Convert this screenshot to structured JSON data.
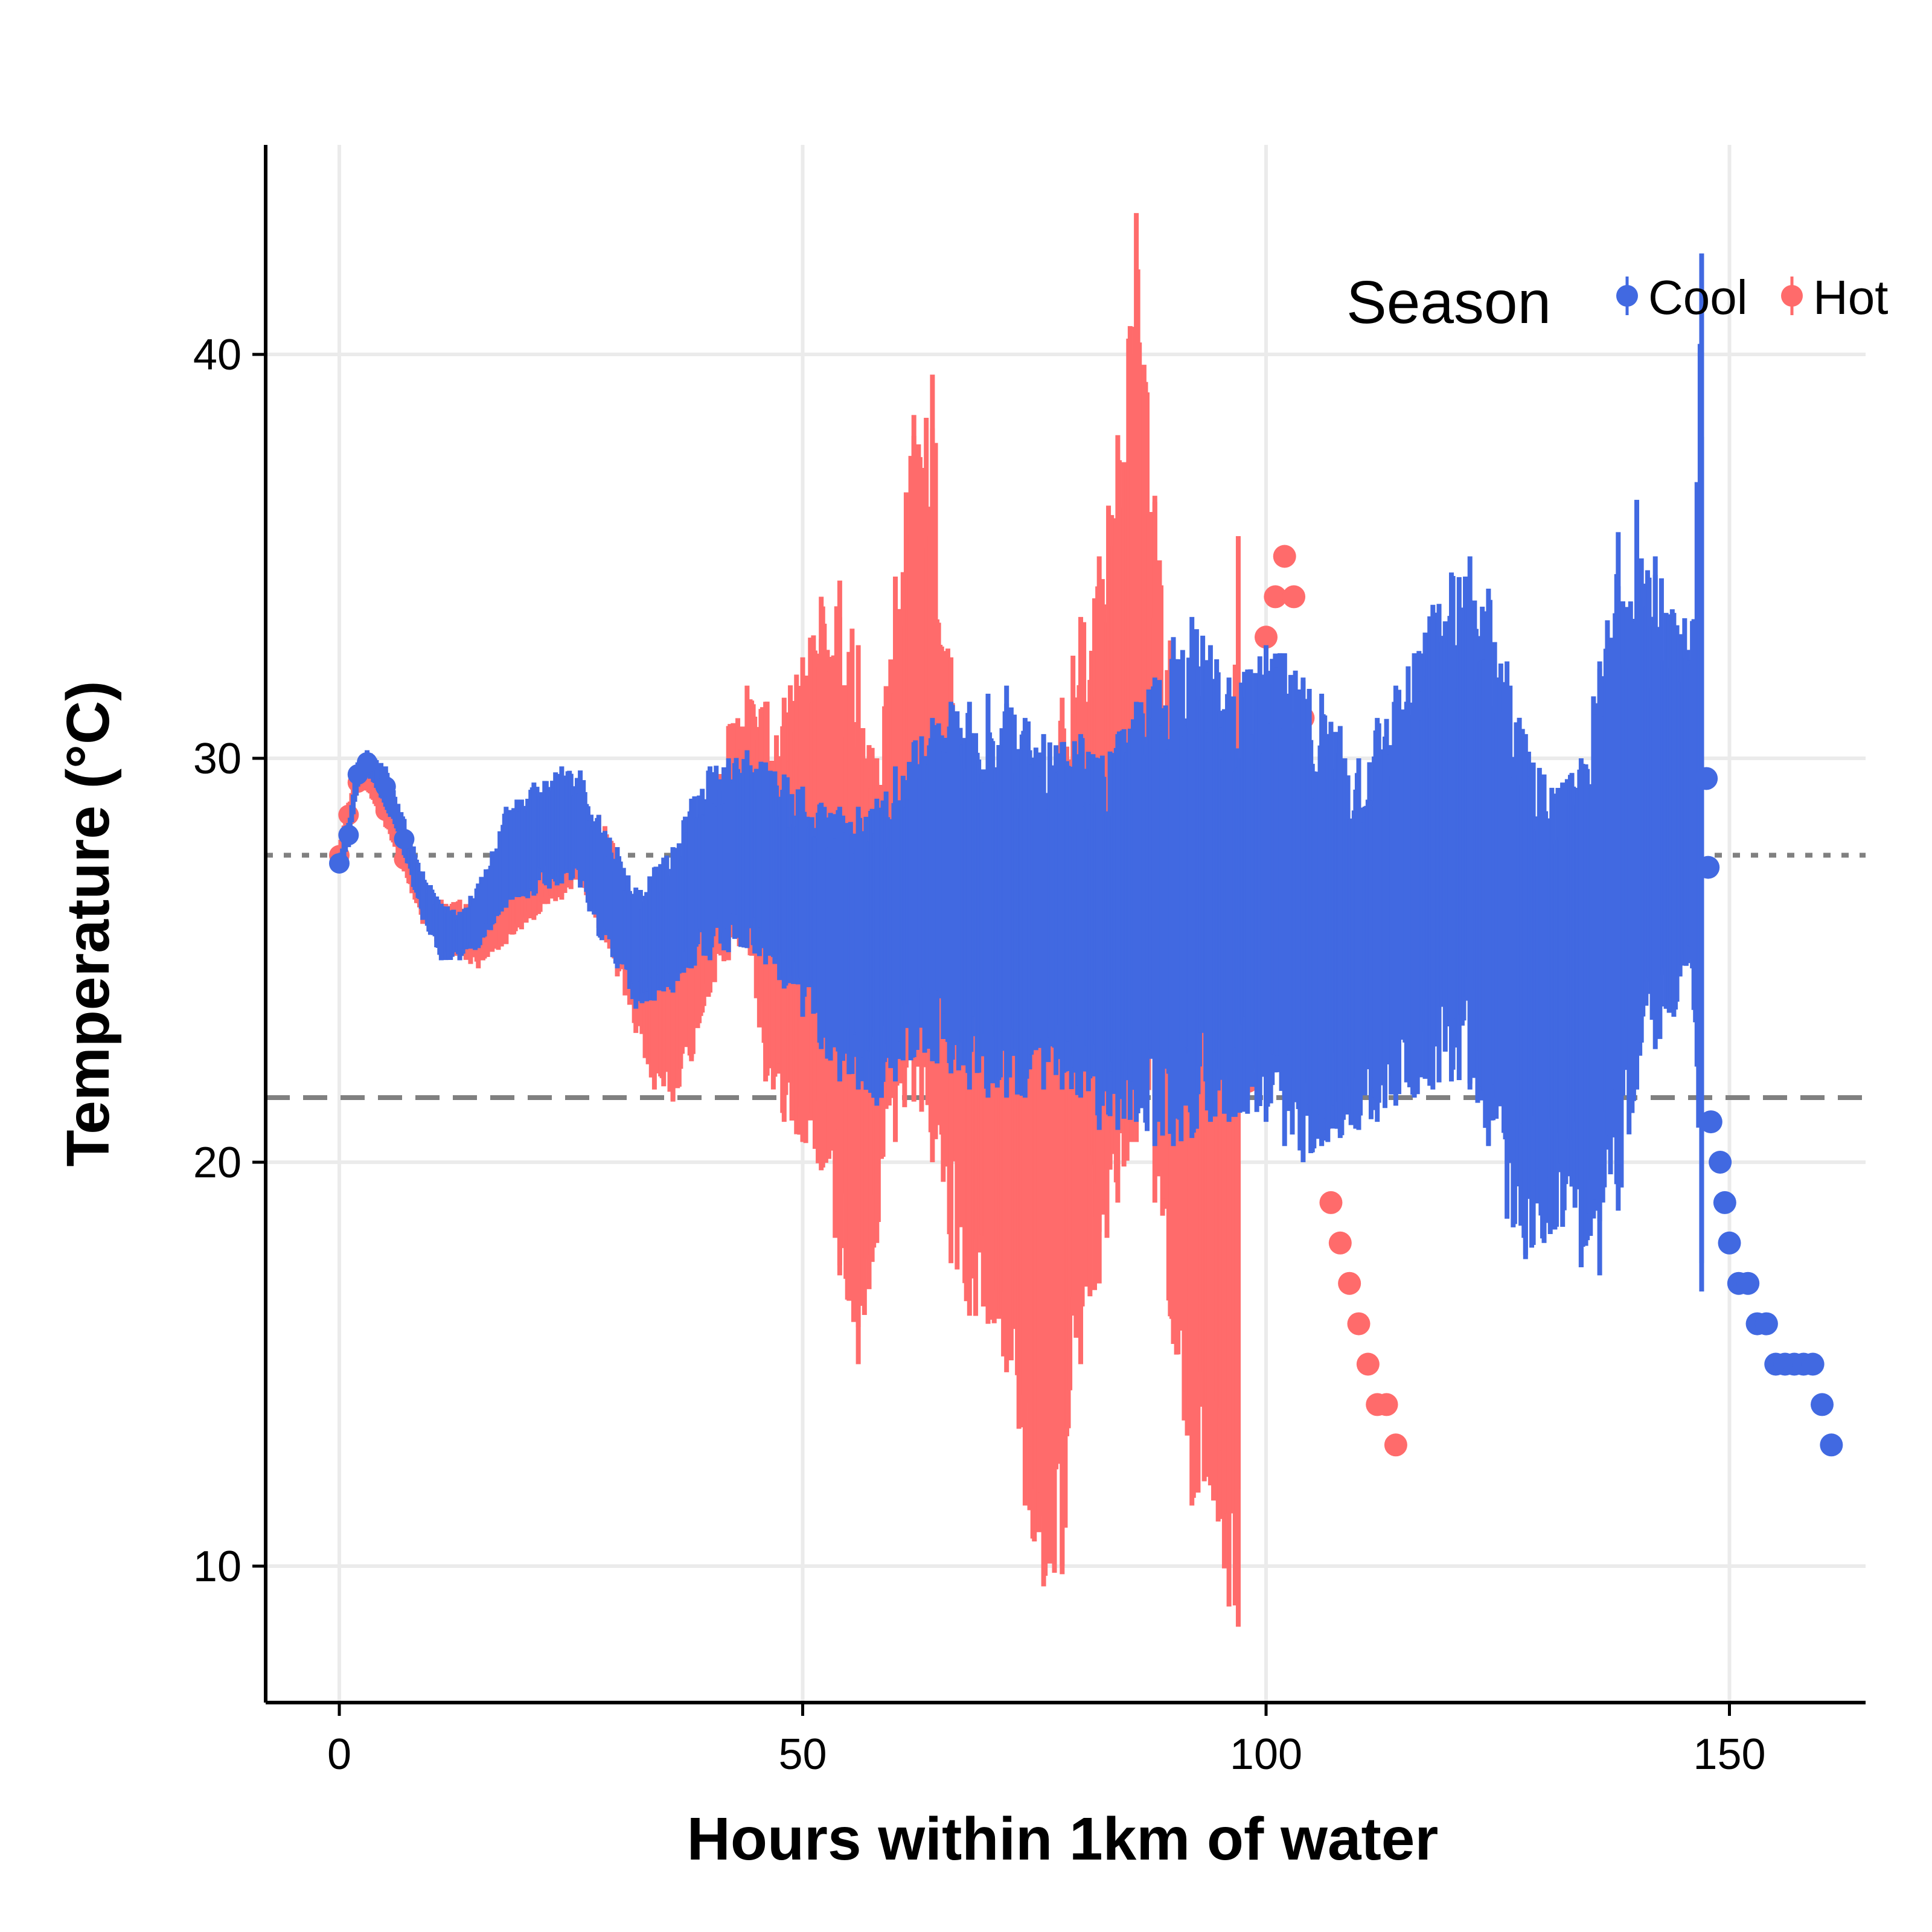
{
  "chart_data": {
    "type": "scatter",
    "xlabel": "Hours within 1km of water",
    "ylabel": "Temperature (°C)",
    "xlim": [
      -8,
      165
    ],
    "ylim": [
      6.5,
      45
    ],
    "x_ticks": [
      0,
      50,
      100,
      150
    ],
    "x_tick_labels": [
      "0",
      "50",
      "100",
      "150"
    ],
    "y_ticks": [
      10,
      20,
      30,
      40
    ],
    "y_tick_labels": [
      "10",
      "20",
      "30",
      "40"
    ],
    "grid": true,
    "reference_lines": [
      {
        "y": 27.6,
        "style": "dotted",
        "color": "#808080"
      },
      {
        "y": 21.6,
        "style": "dashed",
        "color": "#808080"
      }
    ],
    "legend": {
      "title": "Season",
      "position": "top-right",
      "entries": [
        {
          "label": "Cool",
          "color": "#4169E1"
        },
        {
          "label": "Hot",
          "color": "#FF6B6B"
        }
      ]
    },
    "series": [
      {
        "name": "Hot",
        "color": "#FF6B6B",
        "keypoints": [
          [
            0,
            27.6,
            27.4,
            27.8
          ],
          [
            1,
            28.6,
            28.3,
            28.9
          ],
          [
            2,
            29.4,
            29.2,
            29.7
          ],
          [
            3,
            29.5,
            29.2,
            29.8
          ],
          [
            5,
            28.7,
            28.3,
            29.1
          ],
          [
            7,
            27.5,
            27.2,
            27.9
          ],
          [
            9,
            26.4,
            25.9,
            26.8
          ],
          [
            11,
            25.8,
            25.2,
            26.5
          ],
          [
            13,
            25.7,
            25.0,
            26.5
          ],
          [
            15,
            25.6,
            24.8,
            26.5
          ],
          [
            18,
            26.2,
            25.4,
            27.0
          ],
          [
            21,
            26.8,
            26.0,
            27.6
          ],
          [
            24,
            27.4,
            26.5,
            28.3
          ],
          [
            26,
            27.9,
            27.0,
            28.9
          ],
          [
            28,
            27.2,
            25.8,
            28.6
          ],
          [
            30,
            26.2,
            24.6,
            27.8
          ],
          [
            32,
            24.8,
            23.2,
            26.4
          ],
          [
            34,
            23.7,
            21.8,
            25.6
          ],
          [
            36,
            23.8,
            21.5,
            26.2
          ],
          [
            38,
            24.5,
            22.5,
            27.0
          ],
          [
            40,
            26.2,
            24.2,
            28.6
          ],
          [
            42,
            27.6,
            25.0,
            30.8
          ],
          [
            44,
            28.4,
            25.4,
            31.8
          ],
          [
            46,
            26.6,
            22.0,
            31.4
          ],
          [
            48,
            25.8,
            21.0,
            31.5
          ],
          [
            50,
            26.0,
            20.5,
            32.5
          ],
          [
            52,
            26.8,
            19.8,
            34.0
          ],
          [
            54,
            25.8,
            17.2,
            34.4
          ],
          [
            56,
            24.8,
            15.0,
            32.8
          ],
          [
            58,
            24.4,
            18.0,
            30.0
          ],
          [
            60,
            26.8,
            20.5,
            34.5
          ],
          [
            62,
            29.0,
            21.5,
            38.5
          ],
          [
            64,
            28.8,
            20.0,
            39.5
          ],
          [
            66,
            25.0,
            17.5,
            32.5
          ],
          [
            68,
            22.8,
            16.2,
            29.5
          ],
          [
            70,
            21.6,
            16.0,
            27.5
          ],
          [
            72,
            20.8,
            14.8,
            25.6
          ],
          [
            74,
            19.2,
            11.5,
            24.5
          ],
          [
            76,
            18.6,
            9.5,
            26.5
          ],
          [
            78,
            20.5,
            9.8,
            31.5
          ],
          [
            80,
            23.6,
            15.0,
            33.5
          ],
          [
            82,
            25.6,
            17.0,
            35.0
          ],
          [
            84,
            27.5,
            19.0,
            38.0
          ],
          [
            86,
            30.6,
            20.5,
            43.5
          ],
          [
            88,
            27.5,
            19.0,
            36.5
          ],
          [
            90,
            22.6,
            15.5,
            32.5
          ],
          [
            92,
            20.5,
            11.5,
            30.5
          ],
          [
            94,
            19.5,
            12.0,
            26.5
          ],
          [
            96,
            18.0,
            9.0,
            30.0
          ],
          [
            97,
            18.5,
            8.5,
            35.5
          ]
        ],
        "points": [
          [
            98,
            22
          ],
          [
            99,
            22.6
          ],
          [
            100,
            33
          ],
          [
            101,
            34
          ],
          [
            102,
            35
          ],
          [
            103,
            34
          ],
          [
            104,
            31
          ],
          [
            105,
            29
          ],
          [
            106,
            21
          ],
          [
            107,
            19
          ],
          [
            108,
            18
          ],
          [
            109,
            17
          ],
          [
            110,
            16
          ],
          [
            111,
            15
          ],
          [
            112,
            14
          ],
          [
            113,
            14
          ],
          [
            114,
            13
          ]
        ]
      },
      {
        "name": "Cool",
        "color": "#4169E1",
        "keypoints": [
          [
            0,
            27.4,
            27.2,
            27.6
          ],
          [
            1,
            28.1,
            27.8,
            28.4
          ],
          [
            2,
            29.6,
            29.3,
            29.9
          ],
          [
            3,
            29.9,
            29.6,
            30.2
          ],
          [
            5,
            29.3,
            28.8,
            29.8
          ],
          [
            7,
            28.0,
            27.6,
            28.5
          ],
          [
            9,
            26.6,
            26.0,
            27.2
          ],
          [
            11,
            25.7,
            25.0,
            26.4
          ],
          [
            13,
            25.6,
            25.0,
            26.2
          ],
          [
            15,
            26.0,
            25.3,
            26.9
          ],
          [
            18,
            27.5,
            26.3,
            28.8
          ],
          [
            21,
            28.0,
            26.6,
            29.4
          ],
          [
            24,
            28.4,
            26.9,
            29.8
          ],
          [
            26,
            28.2,
            26.8,
            29.7
          ],
          [
            28,
            27.0,
            25.6,
            28.6
          ],
          [
            30,
            26.2,
            24.8,
            27.8
          ],
          [
            32,
            25.2,
            23.8,
            26.8
          ],
          [
            34,
            25.6,
            24.0,
            27.3
          ],
          [
            36,
            25.8,
            24.2,
            27.8
          ],
          [
            38,
            26.8,
            24.8,
            29.0
          ],
          [
            40,
            27.4,
            25.0,
            29.8
          ],
          [
            42,
            27.6,
            25.2,
            30.0
          ],
          [
            44,
            27.8,
            25.3,
            30.2
          ],
          [
            46,
            27.4,
            24.9,
            29.9
          ],
          [
            48,
            26.8,
            24.3,
            29.6
          ],
          [
            50,
            26.4,
            23.6,
            29.3
          ],
          [
            52,
            25.8,
            22.8,
            28.9
          ],
          [
            54,
            25.5,
            22.0,
            28.8
          ],
          [
            56,
            25.4,
            21.8,
            28.8
          ],
          [
            58,
            25.2,
            21.4,
            29.0
          ],
          [
            60,
            25.8,
            22.0,
            29.8
          ],
          [
            62,
            26.4,
            22.6,
            30.4
          ],
          [
            64,
            26.8,
            22.5,
            31.0
          ],
          [
            66,
            27.0,
            22.2,
            31.4
          ],
          [
            68,
            26.6,
            21.8,
            31.4
          ],
          [
            70,
            26.2,
            21.6,
            31.6
          ],
          [
            72,
            25.8,
            21.6,
            31.8
          ],
          [
            74,
            25.6,
            21.6,
            31.0
          ],
          [
            76,
            25.6,
            21.8,
            30.6
          ],
          [
            78,
            25.8,
            21.8,
            30.4
          ],
          [
            80,
            25.8,
            21.6,
            30.6
          ],
          [
            82,
            25.6,
            20.8,
            30.0
          ],
          [
            84,
            25.8,
            20.8,
            30.6
          ],
          [
            86,
            26.2,
            21.0,
            31.4
          ],
          [
            88,
            26.4,
            20.4,
            32.0
          ],
          [
            90,
            27.0,
            20.4,
            33.0
          ],
          [
            92,
            27.2,
            20.6,
            33.5
          ],
          [
            94,
            27.2,
            21.0,
            32.8
          ],
          [
            96,
            26.8,
            21.0,
            32.0
          ],
          [
            98,
            26.6,
            21.2,
            32.2
          ],
          [
            100,
            26.4,
            21.0,
            32.8
          ],
          [
            102,
            26.0,
            20.4,
            32.6
          ],
          [
            104,
            25.8,
            20.0,
            32.0
          ],
          [
            106,
            25.6,
            20.4,
            31.6
          ],
          [
            108,
            25.4,
            20.6,
            30.8
          ],
          [
            110,
            25.6,
            20.8,
            30.0
          ],
          [
            112,
            26.2,
            21.0,
            31.0
          ],
          [
            114,
            26.6,
            21.4,
            31.8
          ],
          [
            116,
            27.0,
            21.6,
            32.6
          ],
          [
            118,
            27.4,
            21.8,
            33.8
          ],
          [
            120,
            27.8,
            22.0,
            34.6
          ],
          [
            122,
            28.2,
            21.8,
            35.0
          ],
          [
            124,
            27.6,
            20.4,
            34.2
          ],
          [
            126,
            26.4,
            18.6,
            32.4
          ],
          [
            128,
            25.6,
            17.6,
            30.6
          ],
          [
            130,
            25.4,
            18.0,
            29.6
          ],
          [
            132,
            25.6,
            18.4,
            29.4
          ],
          [
            134,
            25.8,
            17.4,
            30.0
          ],
          [
            136,
            26.6,
            17.2,
            32.4
          ],
          [
            138,
            27.4,
            18.8,
            35.6
          ],
          [
            140,
            27.6,
            21.8,
            36.4
          ],
          [
            142,
            27.4,
            22.8,
            35.0
          ],
          [
            144,
            26.8,
            23.6,
            33.6
          ],
          [
            146,
            26.4,
            24.8,
            33.4
          ],
          [
            147,
            27.0,
            16.8,
            42.5
          ]
        ],
        "points": [
          [
            147.5,
            29.5
          ],
          [
            147.7,
            27.3
          ],
          [
            148,
            21
          ],
          [
            149,
            20
          ],
          [
            149.5,
            19
          ],
          [
            150,
            18
          ],
          [
            151,
            17
          ],
          [
            152,
            17
          ],
          [
            153,
            16
          ],
          [
            154,
            16
          ],
          [
            155,
            15
          ],
          [
            156,
            15
          ],
          [
            157,
            15
          ],
          [
            158,
            15
          ],
          [
            159,
            15
          ],
          [
            160,
            14
          ],
          [
            161,
            13
          ]
        ]
      }
    ]
  }
}
